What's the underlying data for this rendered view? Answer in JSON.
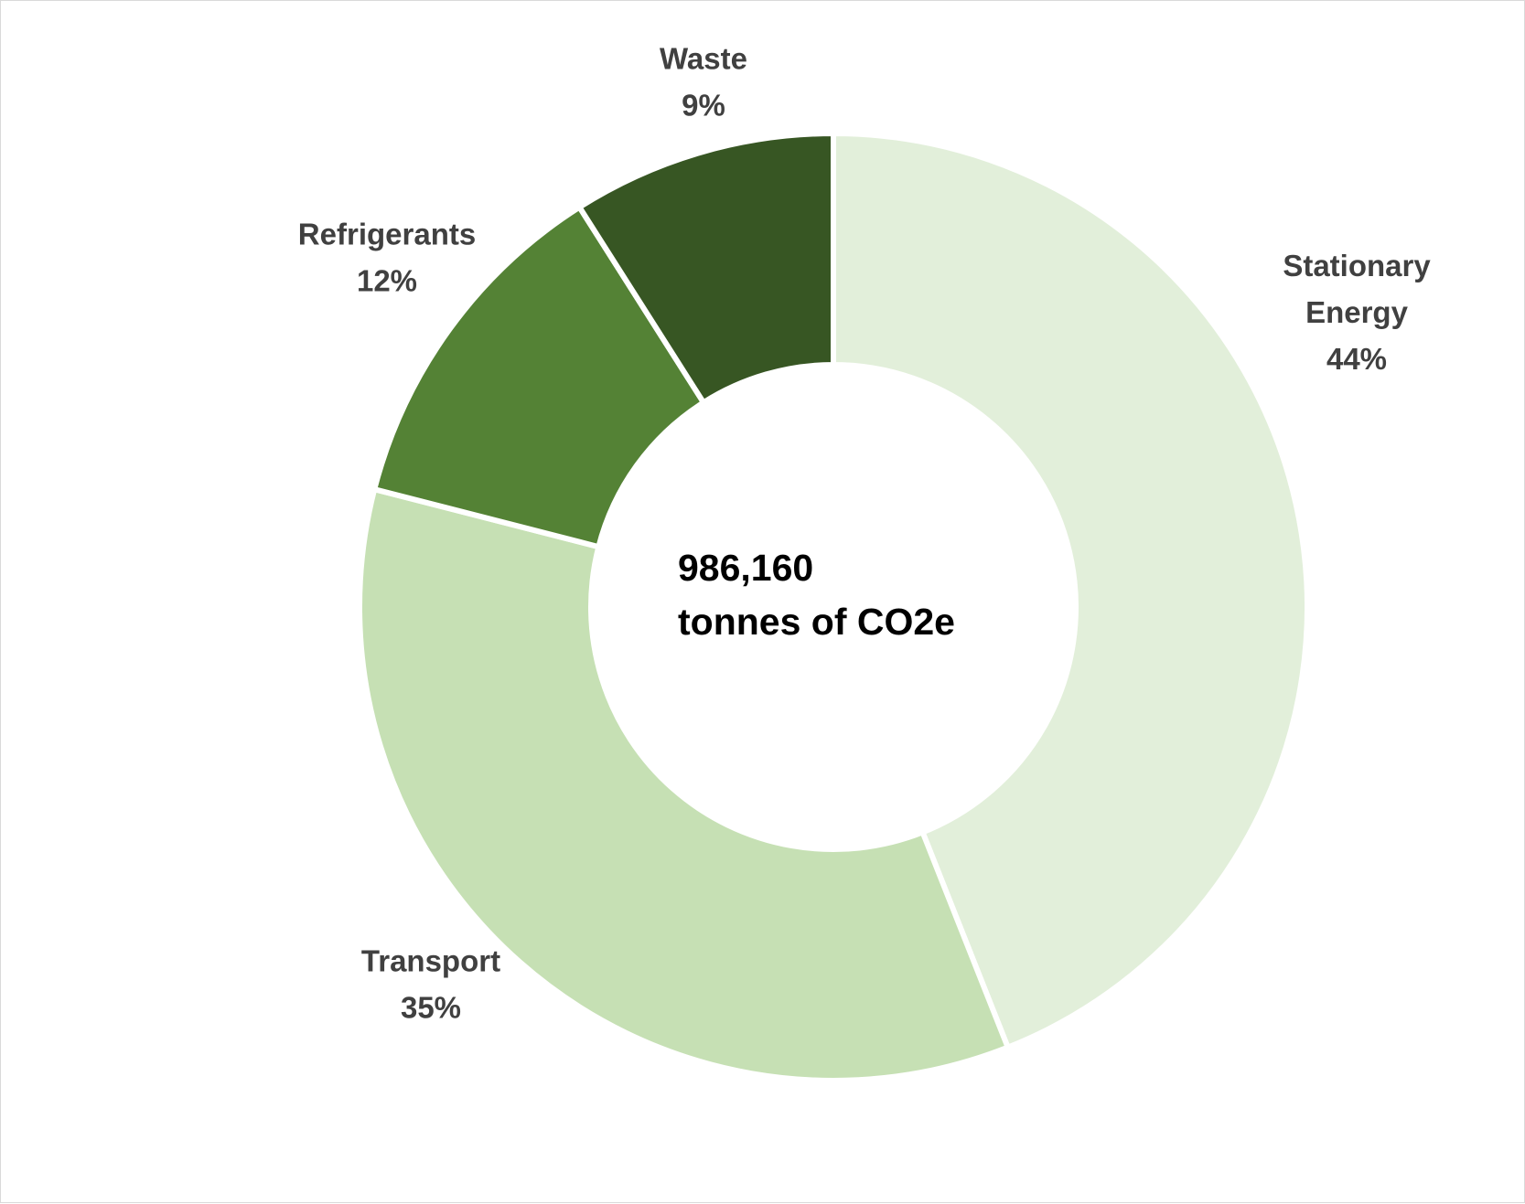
{
  "chart_data": {
    "type": "pie",
    "variant": "donut",
    "center_text": {
      "line1": "986,160",
      "line2": "tonnes of CO2e"
    },
    "slices": [
      {
        "label": "Stationary Energy",
        "label_lines": [
          "Stationary",
          "Energy"
        ],
        "value": 44,
        "value_text": "44%",
        "color": "#e2efda"
      },
      {
        "label": "Transport",
        "label_lines": [
          "Transport"
        ],
        "value": 35,
        "value_text": "35%",
        "color": "#c6e0b4"
      },
      {
        "label": "Refrigerants",
        "label_lines": [
          "Refrigerants"
        ],
        "value": 12,
        "value_text": "12%",
        "color": "#548235"
      },
      {
        "label": "Waste",
        "label_lines": [
          "Waste"
        ],
        "value": 9,
        "value_text": "9%",
        "color": "#375623"
      }
    ],
    "legend": "none",
    "data_labels": "outside"
  }
}
